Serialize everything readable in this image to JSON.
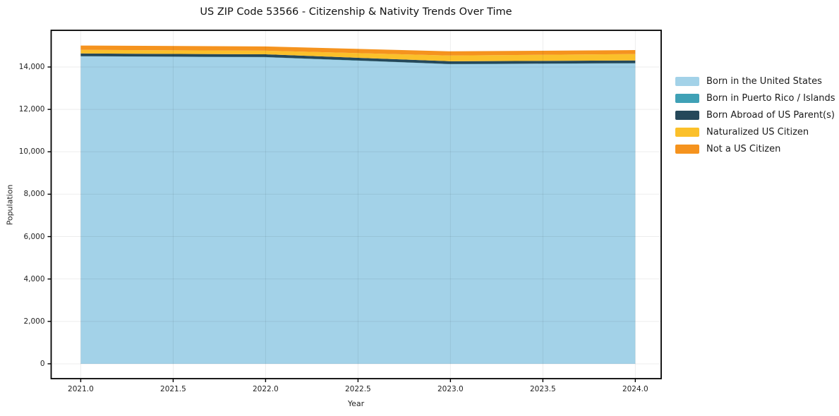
{
  "figure": {
    "title": "US ZIP Code 53566 - Citizenship & Nativity Trends Over Time",
    "xlabel": "Year",
    "ylabel": "Population"
  },
  "chart_data": {
    "type": "area",
    "stacked": true,
    "title": "US ZIP Code 53566 - Citizenship & Nativity Trends Over Time",
    "xlabel": "Year",
    "ylabel": "Population",
    "grid": true,
    "legend_position": "outside-right-top",
    "x": [
      2021,
      2022,
      2023,
      2024
    ],
    "series": [
      {
        "name": "Born in the United States",
        "color": "#A3D2E8",
        "values": [
          14500,
          14460,
          14130,
          14170
        ]
      },
      {
        "name": "Born in Puerto Rico / Islands",
        "color": "#3FA1B6",
        "values": [
          10,
          10,
          10,
          10
        ]
      },
      {
        "name": "Born Abroad of US Parent(s)",
        "color": "#25485A",
        "values": [
          130,
          130,
          130,
          130
        ]
      },
      {
        "name": "Naturalized US Citizen",
        "color": "#FBC02A",
        "values": [
          170,
          170,
          270,
          300
        ]
      },
      {
        "name": "Not a US Citizen",
        "color": "#F5931E",
        "values": [
          200,
          200,
          200,
          190
        ]
      }
    ],
    "totals": [
      15010,
      14970,
      14740,
      14800
    ],
    "xlim": [
      2020.84,
      2024.14
    ],
    "ylim": [
      -700,
      15730
    ],
    "x_ticks": [
      {
        "value": 2021.0,
        "label": "2021.0"
      },
      {
        "value": 2021.5,
        "label": "2021.5"
      },
      {
        "value": 2022.0,
        "label": "2022.0"
      },
      {
        "value": 2022.5,
        "label": "2022.5"
      },
      {
        "value": 2023.0,
        "label": "2023.0"
      },
      {
        "value": 2023.5,
        "label": "2023.5"
      },
      {
        "value": 2024.0,
        "label": "2024.0"
      }
    ],
    "y_ticks": [
      {
        "value": 0,
        "label": "0"
      },
      {
        "value": 2000,
        "label": "2,000"
      },
      {
        "value": 4000,
        "label": "4,000"
      },
      {
        "value": 6000,
        "label": "6,000"
      },
      {
        "value": 8000,
        "label": "8,000"
      },
      {
        "value": 10000,
        "label": "10,000"
      },
      {
        "value": 12000,
        "label": "12,000"
      },
      {
        "value": 14000,
        "label": "14,000"
      }
    ],
    "colors": {
      "frame": "#000000",
      "grid": "rgba(0,0,0,0.07)",
      "background": "#ffffff"
    }
  }
}
